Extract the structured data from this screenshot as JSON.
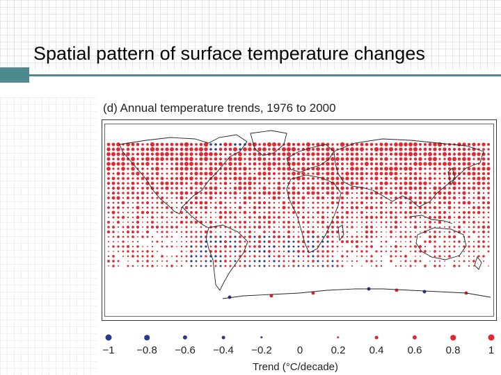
{
  "slide": {
    "title": "Spatial pattern of surface temperature changes"
  },
  "figure": {
    "title": "(d) Annual temperature trends, 1976 to 2000",
    "legend": {
      "axis_label": "Trend (°C/decade)",
      "ticks": [
        "−1",
        "−0.8",
        "−0.6",
        "−0.4",
        "−0.2",
        "0",
        "0.2",
        "0.4",
        "0.6",
        "0.8",
        "1"
      ],
      "values": [
        -1,
        -0.8,
        -0.6,
        -0.4,
        -0.2,
        0,
        0.2,
        0.4,
        0.6,
        0.8,
        1
      ]
    },
    "colors": {
      "warming": "#e0282e",
      "cooling": "#2b3a8f",
      "coastline": "#222222"
    }
  }
}
